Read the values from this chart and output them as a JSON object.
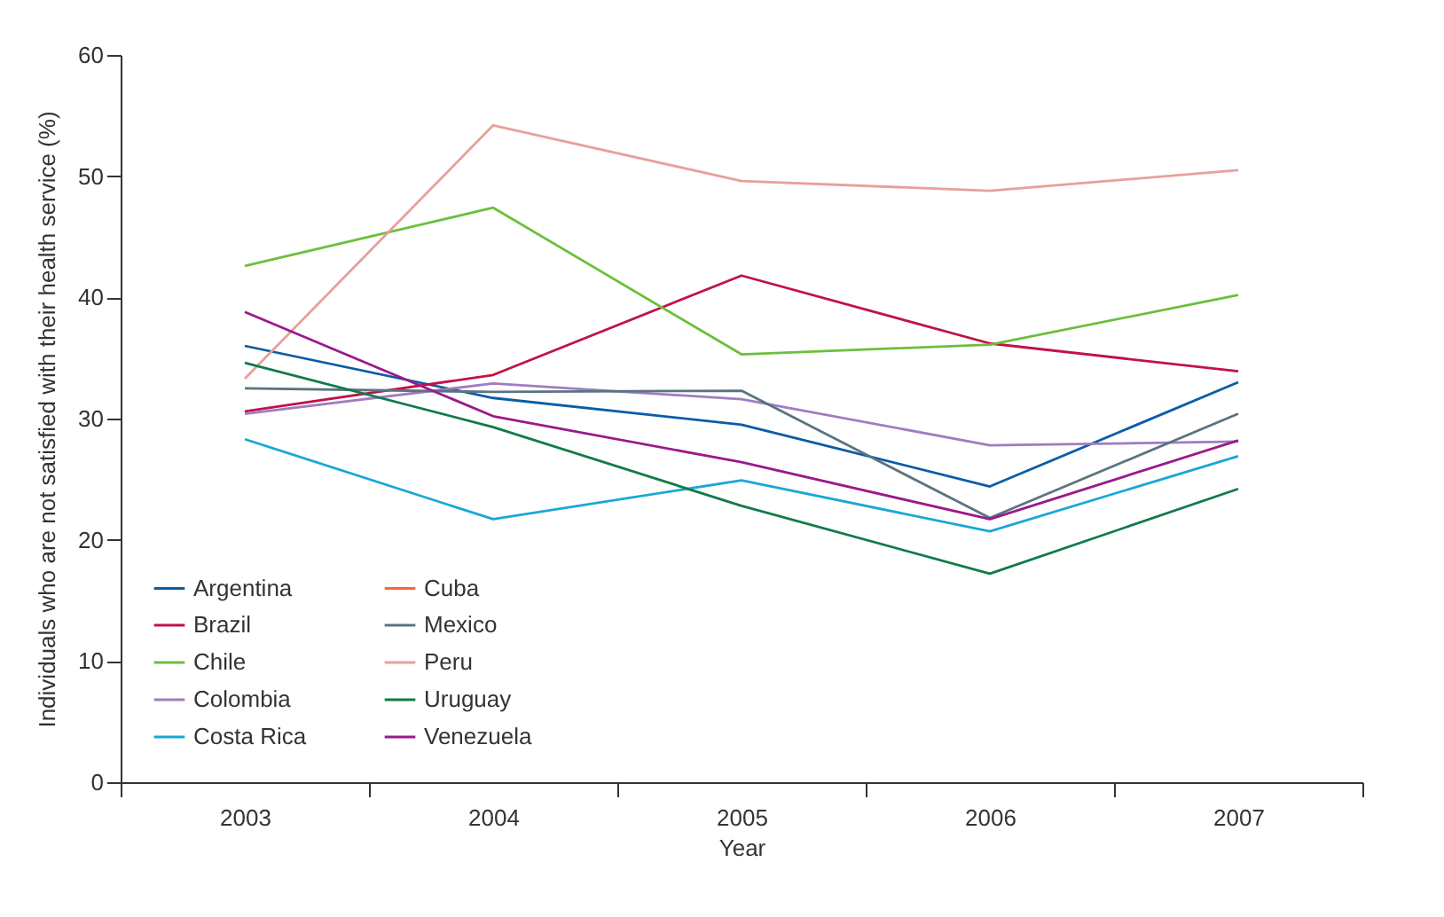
{
  "chart_data": {
    "type": "line",
    "xlabel": "Year",
    "ylabel": "Individuals who are not satisfied with their health service (%)",
    "categories": [
      "2003",
      "2004",
      "2005",
      "2006",
      "2007"
    ],
    "series": [
      {
        "name": "Argentina",
        "color": "#0a5ca8",
        "values": [
          36.0,
          31.7,
          29.5,
          24.4,
          33.0
        ]
      },
      {
        "name": "Brazil",
        "color": "#c0124a",
        "values": [
          30.6,
          33.6,
          41.8,
          36.2,
          33.9
        ]
      },
      {
        "name": "Chile",
        "color": "#6cbf3c",
        "values": [
          42.6,
          47.4,
          35.3,
          36.1,
          40.2
        ]
      },
      {
        "name": "Colombia",
        "color": "#a07cc0",
        "values": [
          30.4,
          32.9,
          31.6,
          27.8,
          28.1
        ]
      },
      {
        "name": "Costa Rica",
        "color": "#1aa7d6",
        "values": [
          28.3,
          21.7,
          24.9,
          20.7,
          26.9
        ]
      },
      {
        "name": "Cuba",
        "color": "#f26a3d",
        "values": [
          null,
          null,
          null,
          null,
          null
        ]
      },
      {
        "name": "Mexico",
        "color": "#5a7480",
        "values": [
          32.5,
          32.2,
          32.3,
          21.8,
          30.4
        ]
      },
      {
        "name": "Peru",
        "color": "#e8a09a",
        "values": [
          33.3,
          54.2,
          49.6,
          48.8,
          50.5
        ]
      },
      {
        "name": "Uruguay",
        "color": "#127a4a",
        "values": [
          34.6,
          29.3,
          22.8,
          17.2,
          24.2
        ]
      },
      {
        "name": "Venezuela",
        "color": "#9a1a8a",
        "values": [
          38.8,
          30.2,
          26.4,
          21.7,
          28.2
        ]
      }
    ],
    "ylim": [
      0,
      60
    ],
    "yticks": [
      0,
      10,
      20,
      30,
      40,
      50,
      60
    ],
    "grid": false,
    "legend": "bottom left",
    "line_style": "solid",
    "marker": "none"
  }
}
